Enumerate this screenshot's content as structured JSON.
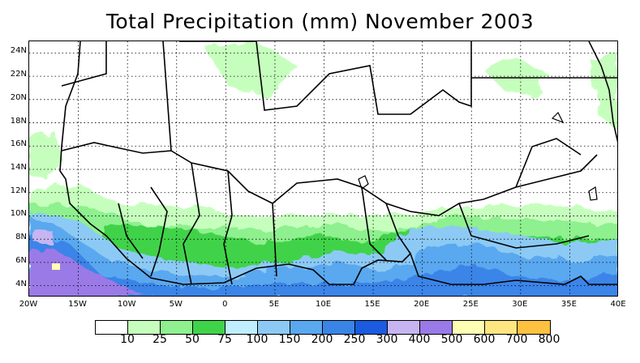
{
  "title": "Total Precipitation (mm) November 2003",
  "map": {
    "lon_range": [
      -20,
      40
    ],
    "lat_range": [
      3,
      25
    ],
    "lat_labels": [
      "4N",
      "6N",
      "8N",
      "10N",
      "12N",
      "14N",
      "16N",
      "18N",
      "20N",
      "22N",
      "24N"
    ],
    "lat_values": [
      4,
      6,
      8,
      10,
      12,
      14,
      16,
      18,
      20,
      22,
      24
    ],
    "lon_labels": [
      "20W",
      "15W",
      "10W",
      "5W",
      "0",
      "5E",
      "10E",
      "15E",
      "20E",
      "25E",
      "30E",
      "35E",
      "40E"
    ],
    "lon_values": [
      -20,
      -15,
      -10,
      -5,
      0,
      5,
      10,
      15,
      20,
      25,
      30,
      35,
      40
    ]
  },
  "legend": {
    "colors": [
      "#ffffff",
      "#c6ffbd",
      "#8ef08e",
      "#3fd34a",
      "#bfeeff",
      "#8ccaf5",
      "#5aa8ef",
      "#3a84e8",
      "#1b5be0",
      "#c7b5f2",
      "#9a7ae6",
      "#ffffb3",
      "#ffe680",
      "#ffc140",
      "#ff8c00",
      "#ff5a00",
      "#e62000"
    ],
    "labels": [
      "10",
      "25",
      "50",
      "75",
      "100",
      "150",
      "200",
      "250",
      "300",
      "400",
      "500",
      "600",
      "700",
      "800"
    ]
  }
}
